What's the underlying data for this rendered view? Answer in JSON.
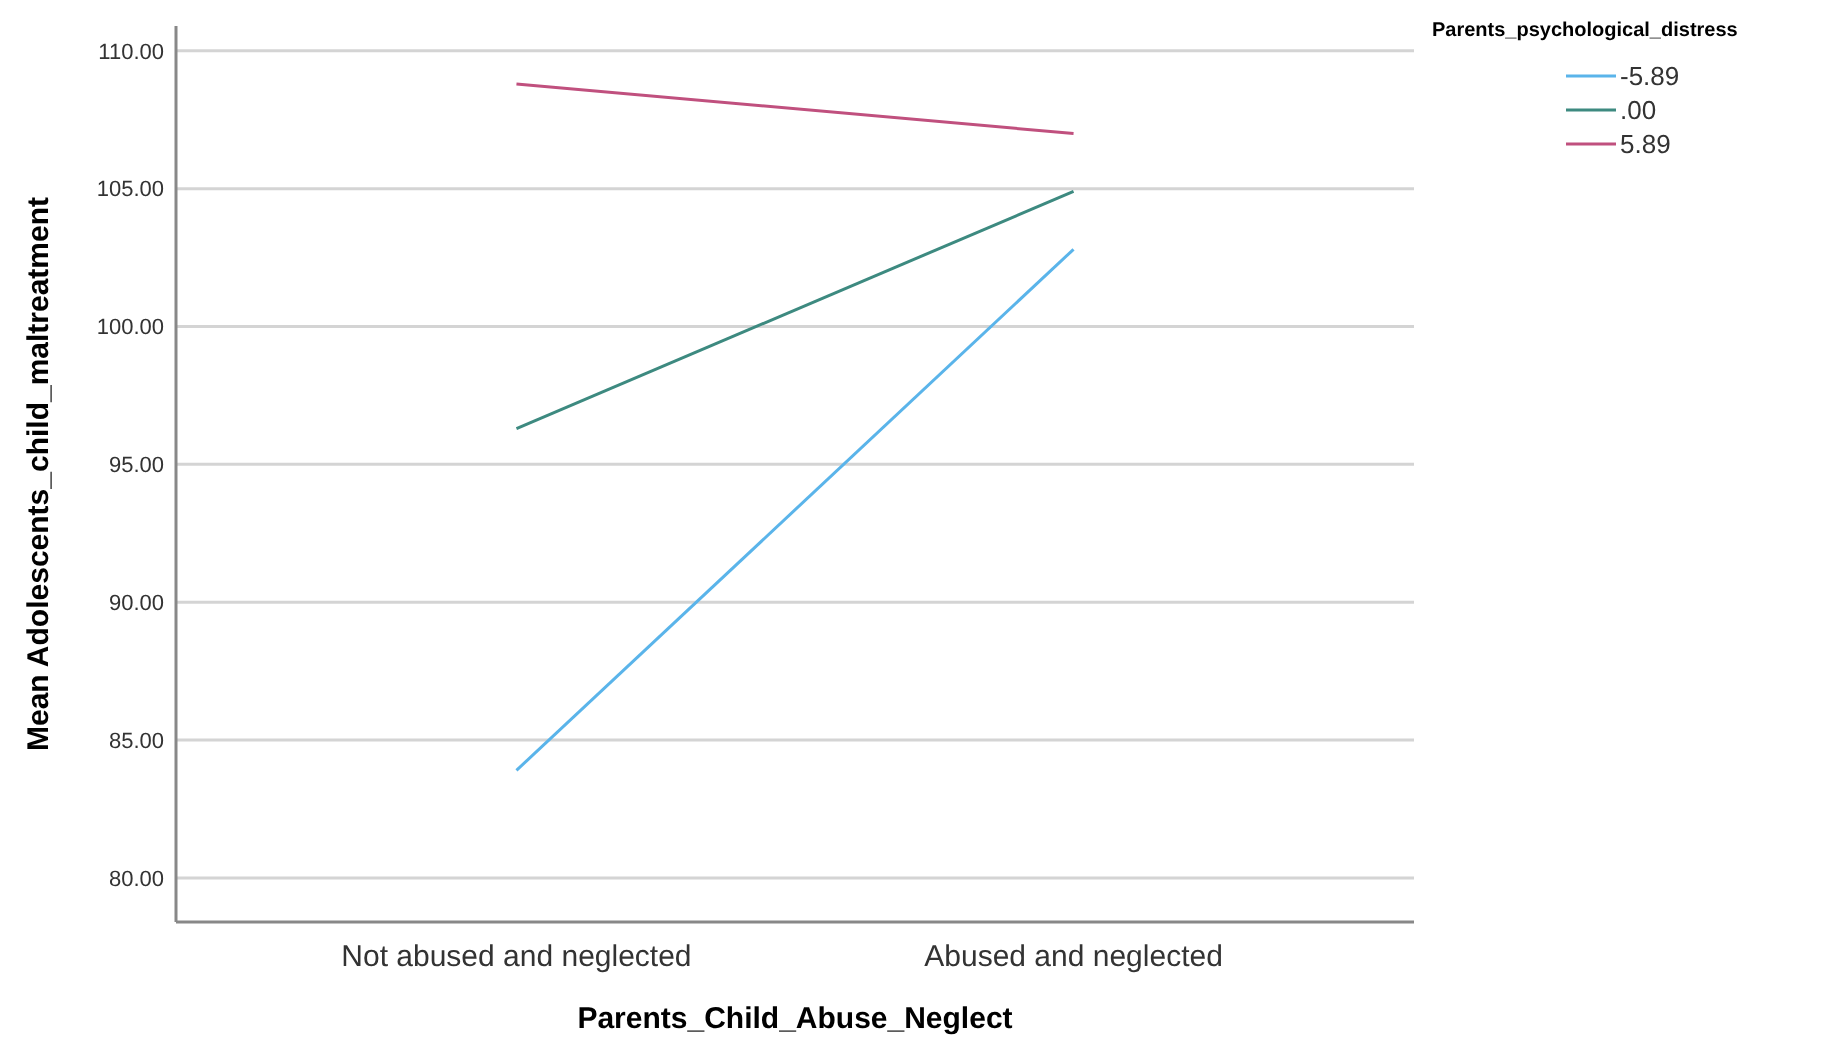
{
  "chart_data": {
    "type": "line",
    "xlabel": "Parents_Child_Abuse_Neglect",
    "ylabel": "Mean Adolescents_child_maltreatment",
    "legend_title": "Parents_psychological_distress",
    "categories": [
      "Not abused and neglected",
      "Abused and neglected"
    ],
    "series": [
      {
        "name": "-5.89",
        "color": "#5ab4ea",
        "values": [
          83.9,
          102.8
        ]
      },
      {
        "name": ".00",
        "color": "#3d8a80",
        "values": [
          96.3,
          104.9
        ]
      },
      {
        "name": "5.89",
        "color": "#c0507e",
        "values": [
          108.8,
          107.0
        ]
      }
    ],
    "ylim": [
      78.4,
      110.9
    ],
    "yticks": [
      {
        "value": 80,
        "label": "80.00"
      },
      {
        "value": 85,
        "label": "85.00"
      },
      {
        "value": 90,
        "label": "90.00"
      },
      {
        "value": 95,
        "label": "95.00"
      },
      {
        "value": 100,
        "label": "100.00"
      },
      {
        "value": 105,
        "label": "105.00"
      },
      {
        "value": 110,
        "label": "110.00"
      }
    ],
    "grid": "y",
    "legend": "top right",
    "marker": "none",
    "line_style": "solid"
  }
}
